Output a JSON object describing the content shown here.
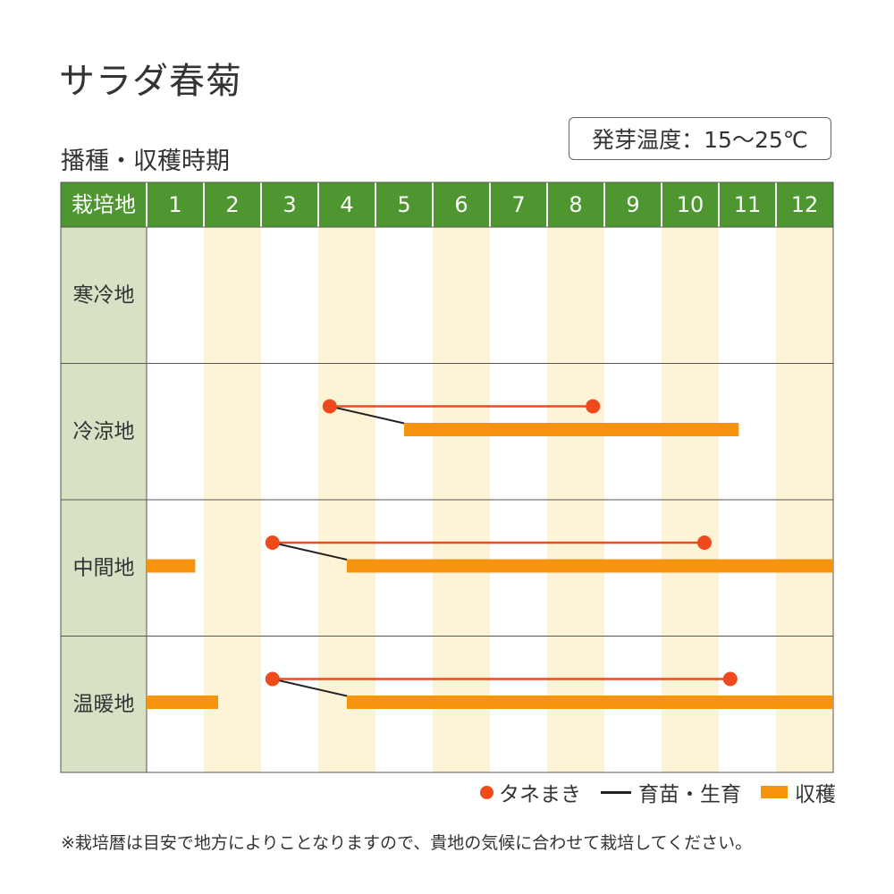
{
  "title": "サラダ春菊",
  "subtitle": "播種・収穫時期",
  "temperature_label": "発芽温度：15〜25℃",
  "colors": {
    "header_bg": "#4e9630",
    "label_col_bg": "#d7e1c4",
    "stripe": "#fdf3d6",
    "sowing": "#ee4a1c",
    "seedling": "#222222",
    "harvest": "#f6950d",
    "grid": "#555555"
  },
  "chart_data": {
    "type": "table",
    "header_label": "栽培地",
    "months": [
      "1",
      "2",
      "3",
      "4",
      "5",
      "6",
      "7",
      "8",
      "9",
      "10",
      "11",
      "12"
    ],
    "rows": [
      {
        "region": "寒冷地",
        "sowing": null,
        "harvest": []
      },
      {
        "region": "冷涼地",
        "sowing": {
          "start": 4.2,
          "end": 8.8
        },
        "seedling": {
          "from": 4.2,
          "to": 5.5
        },
        "harvest": [
          {
            "start": 5.5,
            "end": 11.35
          }
        ]
      },
      {
        "region": "中間地",
        "sowing": {
          "start": 3.2,
          "end": 10.75
        },
        "seedling": {
          "from": 3.2,
          "to": 4.5
        },
        "harvest": [
          {
            "start": 1.0,
            "end": 1.85
          },
          {
            "start": 4.5,
            "end": 13.0
          }
        ]
      },
      {
        "region": "温暖地",
        "sowing": {
          "start": 3.2,
          "end": 11.2
        },
        "seedling": {
          "from": 3.2,
          "to": 4.5
        },
        "harvest": [
          {
            "start": 1.0,
            "end": 2.25
          },
          {
            "start": 4.5,
            "end": 13.0
          }
        ]
      }
    ]
  },
  "legend": {
    "sowing": "タネまき",
    "seedling": "育苗・生育",
    "harvest": "収穫"
  },
  "note": "※栽培暦は目安で地方によりことなりますので、貴地の気候に合わせて栽培してください。"
}
